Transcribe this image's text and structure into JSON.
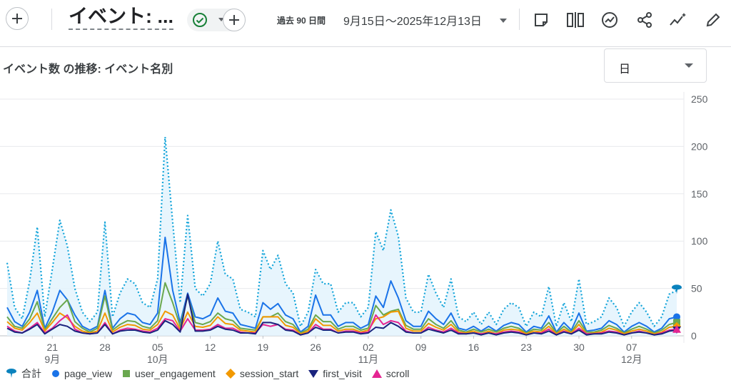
{
  "toolbar": {
    "report_title": "イベント: ...",
    "date_label": "過去 90 日間",
    "date_range": "9月15日～2025年12月13日"
  },
  "card": {
    "title": "イベント数 の推移: イベント名別",
    "granularity": "日"
  },
  "colors": {
    "total": "#12A4D9",
    "page_view": "#1A73E8",
    "user_engagement": "#6AA84F",
    "session_start": "#F29900",
    "first_visit": "#1A237E",
    "scroll": "#E52592"
  },
  "legend": [
    "合計",
    "page_view",
    "user_engagement",
    "session_start",
    "first_visit",
    "scroll"
  ],
  "chart_data": {
    "type": "line",
    "ylim": [
      0,
      250
    ],
    "yticks": [
      "250",
      "200",
      "150",
      "100",
      "50",
      "0"
    ],
    "x_tick_labels": [
      {
        "day": "21",
        "month": "9月"
      },
      {
        "day": "28",
        "month": ""
      },
      {
        "day": "05",
        "month": "10月"
      },
      {
        "day": "12",
        "month": ""
      },
      {
        "day": "19",
        "month": ""
      },
      {
        "day": "26",
        "month": ""
      },
      {
        "day": "02",
        "month": "11月"
      },
      {
        "day": "09",
        "month": ""
      },
      {
        "day": "16",
        "month": ""
      },
      {
        "day": "23",
        "month": ""
      },
      {
        "day": "30",
        "month": ""
      },
      {
        "day": "07",
        "month": "12月"
      }
    ],
    "x_tick_index": [
      6,
      13,
      20,
      27,
      34,
      41,
      48,
      55,
      62,
      69,
      76,
      83
    ],
    "series": [
      {
        "name": "合計",
        "key": "total",
        "values": [
          77,
          30,
          18,
          58,
          115,
          20,
          70,
          122,
          95,
          50,
          25,
          15,
          25,
          120,
          20,
          45,
          60,
          55,
          35,
          30,
          60,
          210,
          120,
          35,
          127,
          50,
          42,
          55,
          100,
          65,
          60,
          28,
          25,
          20,
          90,
          70,
          85,
          55,
          45,
          10,
          25,
          70,
          55,
          55,
          25,
          35,
          35,
          20,
          30,
          110,
          90,
          133,
          105,
          40,
          25,
          25,
          65,
          45,
          30,
          60,
          20,
          15,
          25,
          12,
          25,
          12,
          28,
          35,
          30,
          10,
          25,
          20,
          52,
          10,
          35,
          15,
          60,
          12,
          15,
          20,
          40,
          30,
          10,
          25,
          35,
          25,
          10,
          20,
          44,
          48
        ]
      },
      {
        "name": "page_view",
        "key": "page_view",
        "values": [
          30,
          15,
          10,
          25,
          48,
          8,
          25,
          48,
          38,
          22,
          10,
          6,
          10,
          48,
          8,
          18,
          24,
          22,
          14,
          12,
          24,
          104,
          48,
          14,
          45,
          20,
          18,
          22,
          40,
          26,
          24,
          12,
          10,
          8,
          35,
          28,
          34,
          22,
          18,
          4,
          10,
          43,
          22,
          22,
          10,
          14,
          14,
          8,
          12,
          42,
          30,
          58,
          40,
          16,
          10,
          10,
          26,
          18,
          12,
          24,
          8,
          6,
          10,
          5,
          10,
          5,
          11,
          14,
          12,
          4,
          10,
          8,
          21,
          4,
          14,
          6,
          24,
          5,
          6,
          8,
          16,
          12,
          4,
          10,
          14,
          10,
          4,
          8,
          18,
          20
        ]
      },
      {
        "name": "user_engagement",
        "key": "user_engagement",
        "values": [
          20,
          10,
          8,
          18,
          36,
          6,
          18,
          30,
          38,
          15,
          8,
          4,
          8,
          42,
          6,
          12,
          16,
          15,
          10,
          8,
          16,
          56,
          35,
          10,
          42,
          14,
          12,
          15,
          24,
          18,
          16,
          8,
          7,
          6,
          20,
          20,
          24,
          15,
          12,
          3,
          7,
          22,
          15,
          15,
          7,
          10,
          10,
          6,
          8,
          32,
          22,
          26,
          28,
          11,
          7,
          7,
          18,
          12,
          8,
          16,
          6,
          4,
          7,
          4,
          7,
          4,
          8,
          10,
          8,
          3,
          7,
          6,
          14,
          3,
          10,
          4,
          16,
          4,
          4,
          6,
          11,
          8,
          3,
          7,
          10,
          7,
          3,
          6,
          12,
          14
        ]
      },
      {
        "name": "session_start",
        "key": "session_start",
        "values": [
          15,
          8,
          6,
          14,
          24,
          5,
          14,
          24,
          19,
          10,
          5,
          3,
          5,
          24,
          4,
          9,
          12,
          11,
          7,
          6,
          12,
          26,
          22,
          7,
          25,
          10,
          9,
          11,
          20,
          13,
          12,
          6,
          5,
          4,
          20,
          20,
          20,
          11,
          9,
          2,
          5,
          18,
          11,
          11,
          5,
          7,
          7,
          4,
          6,
          18,
          20,
          25,
          26,
          8,
          5,
          5,
          13,
          9,
          6,
          12,
          4,
          3,
          5,
          2,
          5,
          2,
          6,
          7,
          6,
          2,
          5,
          4,
          10,
          2,
          7,
          3,
          12,
          2,
          3,
          4,
          8,
          6,
          2,
          5,
          7,
          5,
          2,
          4,
          9,
          10
        ]
      },
      {
        "name": "first_visit",
        "key": "first_visit",
        "values": [
          8,
          4,
          3,
          7,
          12,
          2,
          7,
          12,
          10,
          5,
          3,
          2,
          3,
          12,
          2,
          5,
          6,
          6,
          4,
          3,
          6,
          16,
          12,
          4,
          44,
          5,
          5,
          6,
          10,
          7,
          6,
          3,
          3,
          2,
          14,
          14,
          12,
          6,
          5,
          1,
          3,
          9,
          6,
          6,
          3,
          4,
          4,
          2,
          3,
          9,
          8,
          14,
          10,
          4,
          3,
          3,
          7,
          5,
          3,
          6,
          2,
          2,
          3,
          1,
          3,
          1,
          3,
          4,
          3,
          1,
          3,
          2,
          5,
          1,
          4,
          2,
          6,
          1,
          2,
          2,
          4,
          3,
          1,
          3,
          4,
          3,
          1,
          2,
          5,
          6
        ]
      },
      {
        "name": "scroll",
        "key": "scroll",
        "values": [
          10,
          5,
          3,
          8,
          14,
          3,
          8,
          16,
          22,
          7,
          3,
          2,
          3,
          14,
          2,
          6,
          8,
          7,
          5,
          4,
          8,
          18,
          16,
          5,
          18,
          6,
          6,
          7,
          12,
          8,
          8,
          4,
          3,
          3,
          12,
          10,
          12,
          7,
          6,
          1,
          3,
          12,
          7,
          7,
          3,
          5,
          5,
          3,
          4,
          22,
          12,
          16,
          14,
          5,
          3,
          3,
          9,
          6,
          4,
          8,
          3,
          2,
          3,
          2,
          3,
          2,
          4,
          5,
          4,
          1,
          3,
          3,
          7,
          1,
          5,
          2,
          8,
          2,
          2,
          3,
          5,
          4,
          1,
          3,
          5,
          3,
          1,
          3,
          6,
          7
        ]
      }
    ]
  }
}
